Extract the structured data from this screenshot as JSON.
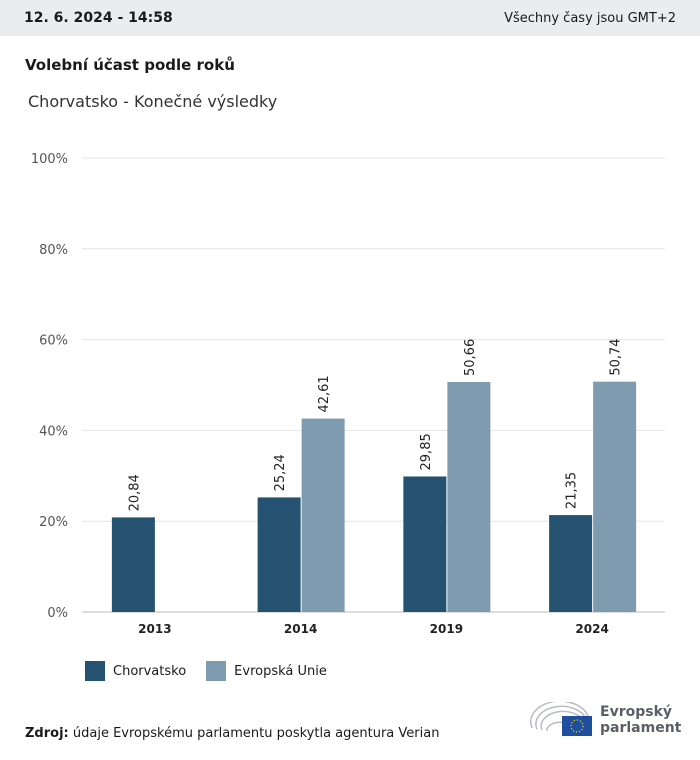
{
  "header": {
    "date": "12. 6. 2024 - 14:58",
    "timezone": "Všechny časy jsou GMT+2"
  },
  "title": "Volební účast podle roků",
  "subtitle": "Chorvatsko - Konečné výsledky",
  "chart_data": {
    "type": "bar",
    "title": "Volební účast podle roků",
    "categories": [
      "2013",
      "2014",
      "2019",
      "2024"
    ],
    "series": [
      {
        "name": "Chorvatsko",
        "color": "#255270",
        "values": [
          20.84,
          25.24,
          29.85,
          21.35
        ],
        "labels": [
          "20,84",
          "25,24",
          "29,85",
          "21,35"
        ]
      },
      {
        "name": "Evropská Unie",
        "color": "#7f9bb0",
        "values": [
          null,
          42.61,
          50.66,
          50.74
        ],
        "labels": [
          null,
          "42,61",
          "50,66",
          "50,74"
        ]
      }
    ],
    "ylim": [
      0,
      100
    ],
    "yticks": [
      0,
      20,
      40,
      60,
      80,
      100
    ],
    "ytick_labels": [
      "0%",
      "20%",
      "40%",
      "60%",
      "80%",
      "100%"
    ],
    "grid": true,
    "legend": "bottom-left"
  },
  "source": {
    "label": "Zdroj:",
    "text": "údaje Evropskému parlamentu poskytla agentura Verian"
  },
  "logo": {
    "line1": "Evropský",
    "line2": "parlament"
  }
}
